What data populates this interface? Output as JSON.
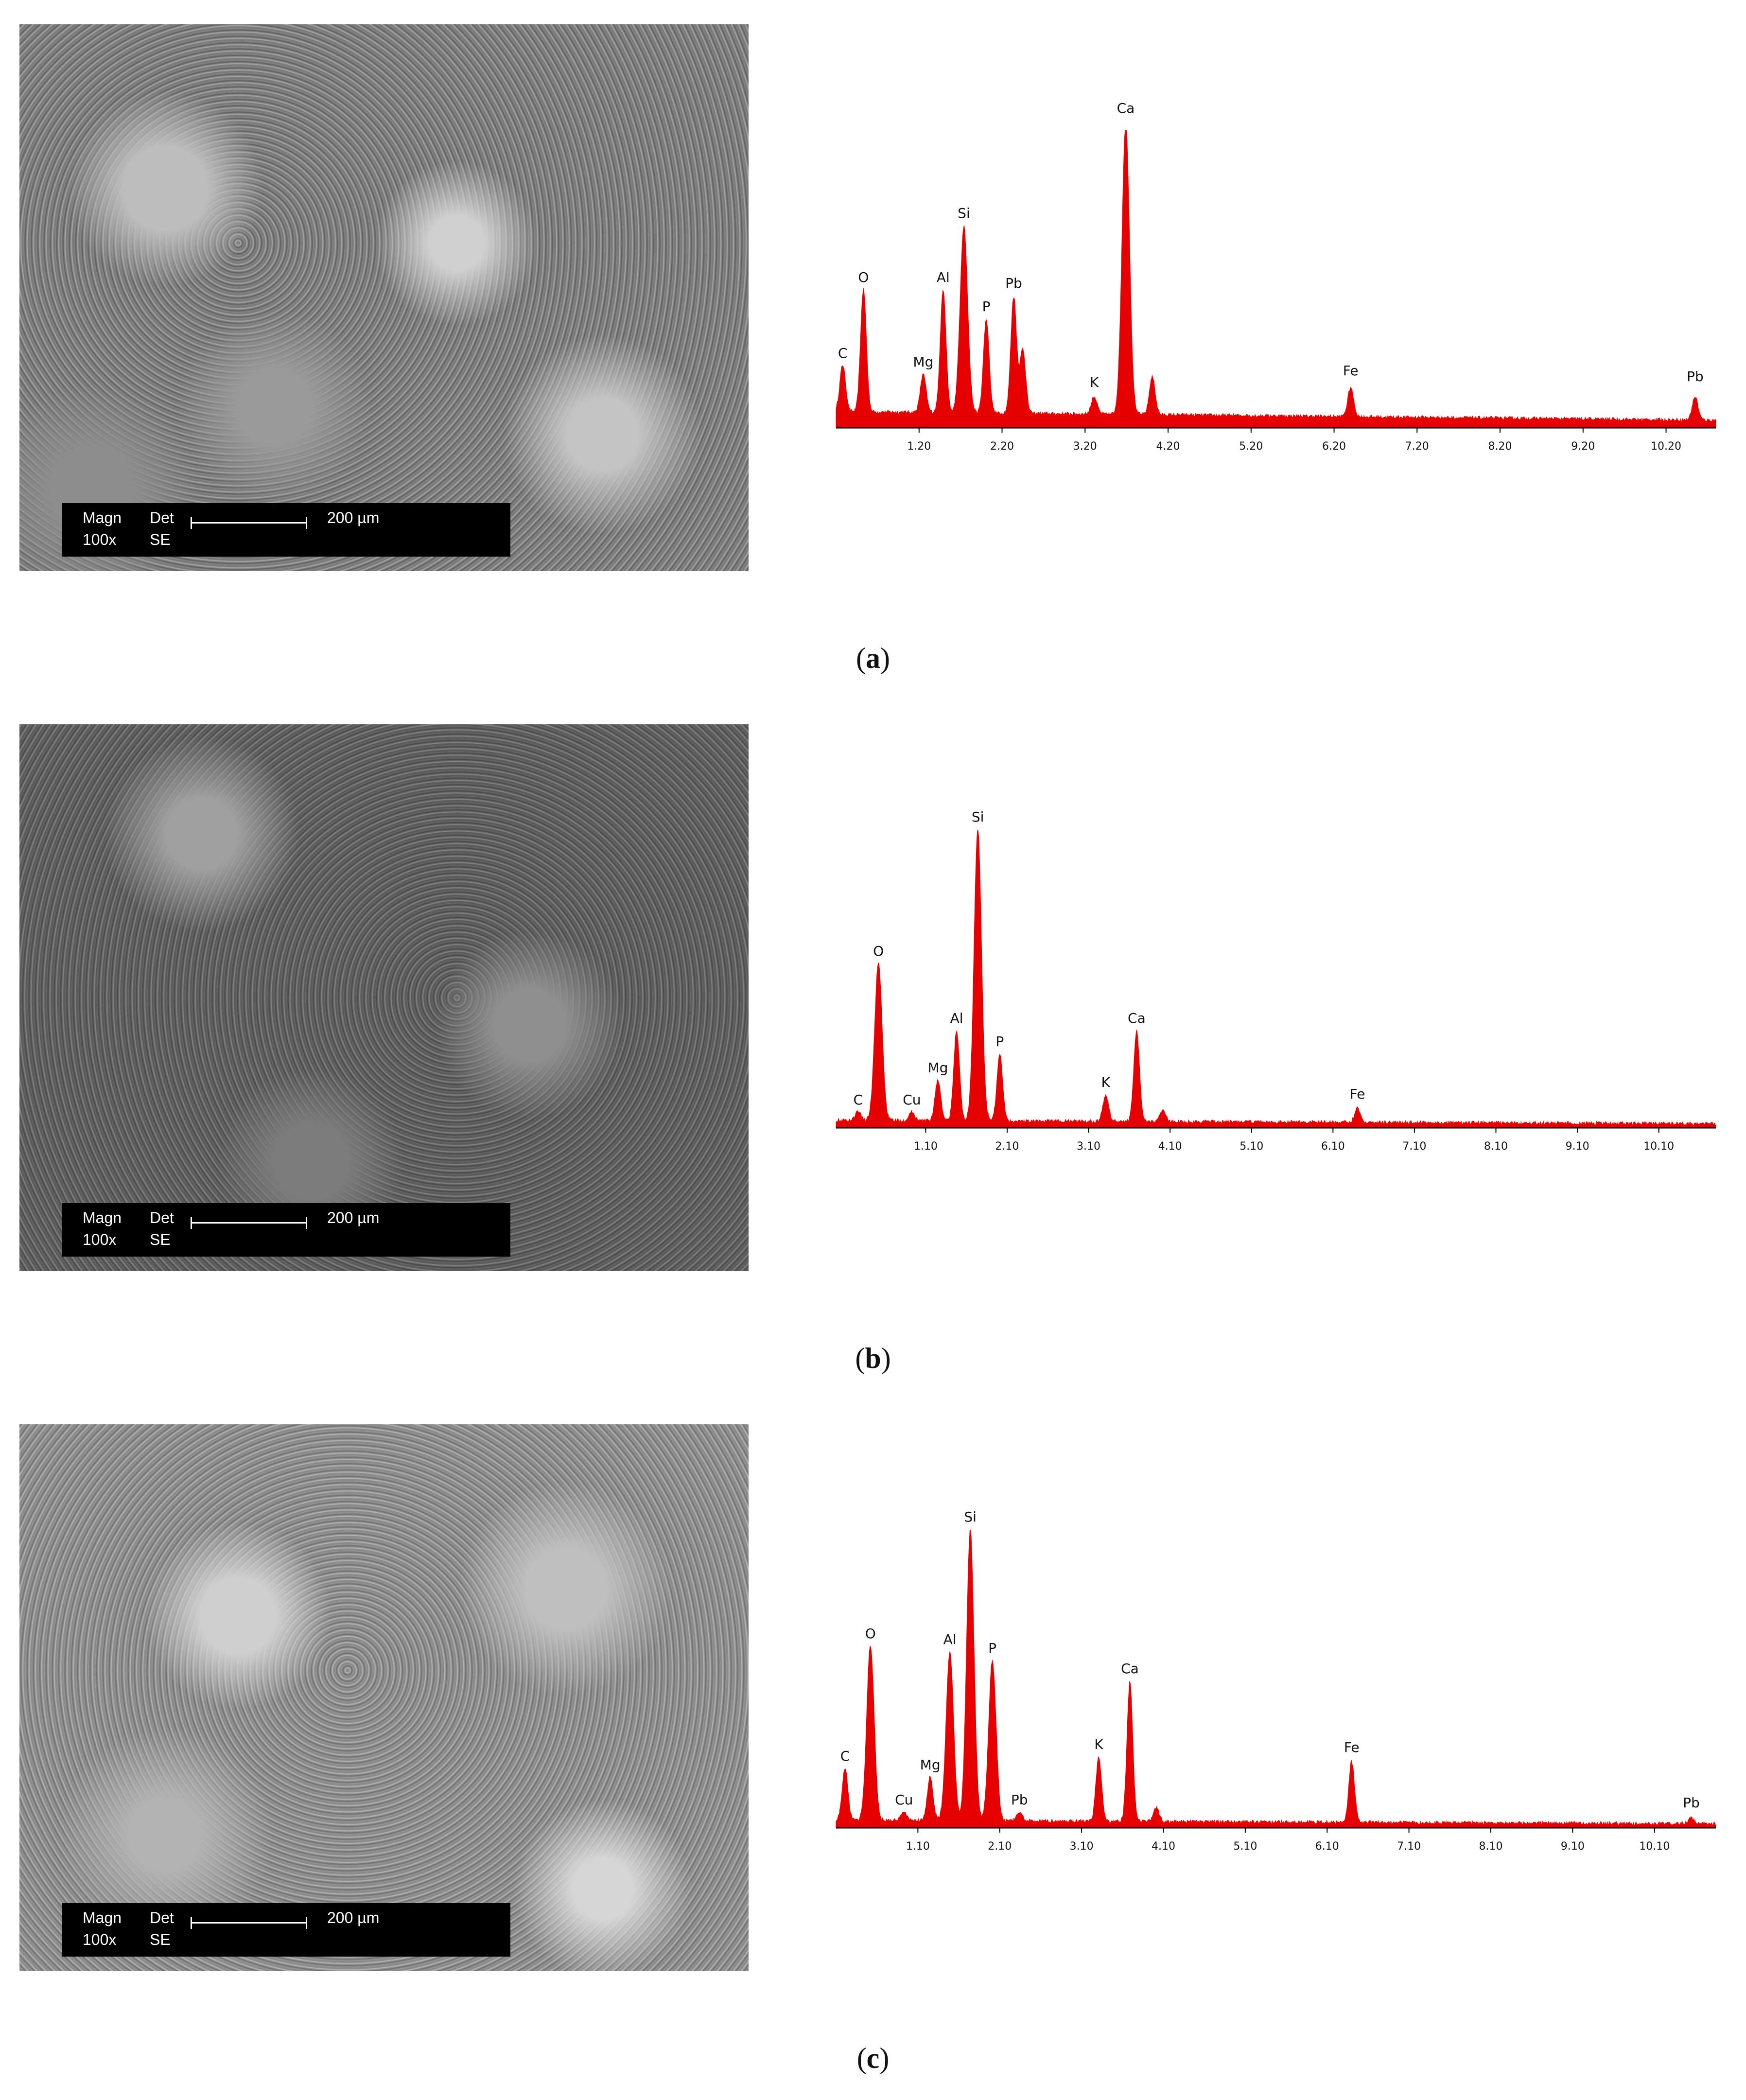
{
  "panels": [
    {
      "caption_letter": "a",
      "sem": {
        "magn_label": "Magn",
        "det_label": "Det",
        "scale_label": "200 µm",
        "magn_value": "100x",
        "det_value": "SE"
      },
      "chart_data": {
        "type": "area",
        "xlim": [
          0.2,
          10.8
        ],
        "tick_labels": [
          "1.20",
          "2.20",
          "3.20",
          "4.20",
          "5.20",
          "6.20",
          "7.20",
          "8.20",
          "9.20",
          "10.20"
        ],
        "ticks": [
          1.2,
          2.2,
          3.2,
          4.2,
          5.2,
          6.2,
          7.2,
          8.2,
          9.2,
          10.2
        ],
        "baseline": 0.05,
        "peaks": [
          {
            "label": "C",
            "x": 0.28,
            "h": 0.16
          },
          {
            "label": "O",
            "x": 0.53,
            "h": 0.42
          },
          {
            "label": "Mg",
            "x": 1.25,
            "h": 0.13
          },
          {
            "label": "Al",
            "x": 1.49,
            "h": 0.42
          },
          {
            "label": "Si",
            "x": 1.74,
            "h": 0.64
          },
          {
            "label": "P",
            "x": 2.01,
            "h": 0.32
          },
          {
            "label": "Pb",
            "x": 2.34,
            "h": 0.4
          },
          {
            "label": "K",
            "x": 3.31,
            "h": 0.06
          },
          {
            "label": "Ca",
            "x": 3.69,
            "h": 1.0
          },
          {
            "label": "Fe",
            "x": 6.4,
            "h": 0.1
          },
          {
            "label": "Pb",
            "x": 10.55,
            "h": 0.08
          }
        ],
        "extra_peaks": [
          {
            "x": 4.01,
            "h": 0.13
          },
          {
            "x": 2.45,
            "h": 0.22
          }
        ]
      }
    },
    {
      "caption_letter": "b",
      "sem": {
        "magn_label": "Magn",
        "det_label": "Det",
        "scale_label": "200 µm",
        "magn_value": "100x",
        "det_value": "SE"
      },
      "chart_data": {
        "type": "area",
        "xlim": [
          0.0,
          10.8
        ],
        "tick_labels": [
          "1.10",
          "2.10",
          "3.10",
          "4.10",
          "5.10",
          "6.10",
          "7.10",
          "8.10",
          "9.10",
          "10.10"
        ],
        "ticks": [
          1.1,
          2.1,
          3.1,
          4.1,
          5.1,
          6.1,
          7.1,
          8.1,
          9.1,
          10.1
        ],
        "baseline": 0.02,
        "peaks": [
          {
            "label": "C",
            "x": 0.27,
            "h": 0.03
          },
          {
            "label": "O",
            "x": 0.52,
            "h": 0.54
          },
          {
            "label": "Cu",
            "x": 0.93,
            "h": 0.03
          },
          {
            "label": "Mg",
            "x": 1.25,
            "h": 0.14
          },
          {
            "label": "Al",
            "x": 1.48,
            "h": 0.31
          },
          {
            "label": "Si",
            "x": 1.74,
            "h": 1.0
          },
          {
            "label": "P",
            "x": 2.01,
            "h": 0.23
          },
          {
            "label": "K",
            "x": 3.31,
            "h": 0.09
          },
          {
            "label": "Ca",
            "x": 3.69,
            "h": 0.31
          },
          {
            "label": "Fe",
            "x": 6.4,
            "h": 0.05
          }
        ],
        "extra_peaks": [
          {
            "x": 4.01,
            "h": 0.04
          }
        ]
      }
    },
    {
      "caption_letter": "c",
      "sem": {
        "magn_label": "Magn",
        "det_label": "Det",
        "scale_label": "200 µm",
        "magn_value": "100x",
        "det_value": "SE"
      },
      "chart_data": {
        "type": "area",
        "xlim": [
          0.1,
          10.85
        ],
        "tick_labels": [
          "1.10",
          "2.10",
          "3.10",
          "4.10",
          "5.10",
          "6.10",
          "7.10",
          "8.10",
          "9.10",
          "10.10"
        ],
        "ticks": [
          1.1,
          2.1,
          3.1,
          4.1,
          5.1,
          6.1,
          7.1,
          8.1,
          9.1,
          10.1
        ],
        "baseline": 0.02,
        "peaks": [
          {
            "label": "C",
            "x": 0.21,
            "h": 0.18
          },
          {
            "label": "O",
            "x": 0.52,
            "h": 0.6
          },
          {
            "label": "Cu",
            "x": 0.93,
            "h": 0.03
          },
          {
            "label": "Mg",
            "x": 1.25,
            "h": 0.15
          },
          {
            "label": "Al",
            "x": 1.49,
            "h": 0.58
          },
          {
            "label": "Si",
            "x": 1.74,
            "h": 1.0
          },
          {
            "label": "P",
            "x": 2.01,
            "h": 0.55
          },
          {
            "label": "Pb",
            "x": 2.34,
            "h": 0.03
          },
          {
            "label": "K",
            "x": 3.31,
            "h": 0.22
          },
          {
            "label": "Ca",
            "x": 3.69,
            "h": 0.48
          },
          {
            "label": "Fe",
            "x": 6.4,
            "h": 0.21
          },
          {
            "label": "Pb",
            "x": 10.55,
            "h": 0.02
          }
        ],
        "extra_peaks": [
          {
            "x": 4.01,
            "h": 0.05
          }
        ]
      }
    }
  ]
}
